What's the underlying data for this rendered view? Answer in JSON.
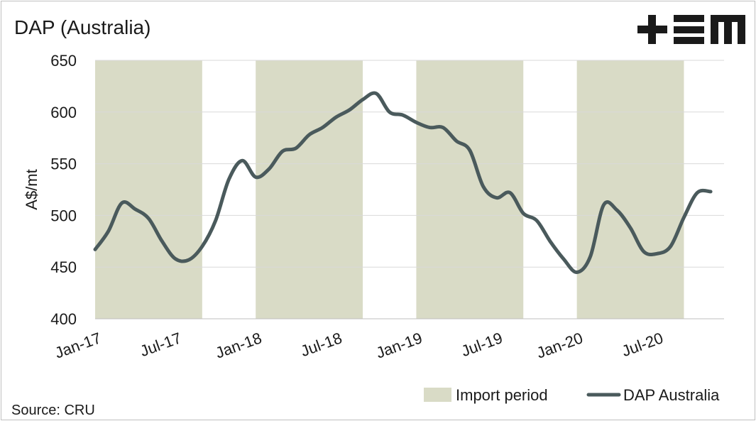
{
  "chart_data": {
    "type": "line",
    "title": "DAP (Australia)",
    "ylabel": "A$/mt",
    "xlabel": "",
    "ylim": [
      400,
      650
    ],
    "yticks": [
      400,
      450,
      500,
      550,
      600,
      650
    ],
    "x_ticks": [
      "Jan-17",
      "Jul-17",
      "Jan-18",
      "Jul-18",
      "Jan-19",
      "Jul-19",
      "Jan-20",
      "Jul-20"
    ],
    "grid": "horizontal",
    "legend_position": "bottom-right",
    "x_start": "2017-01",
    "series": [
      {
        "name": "DAP Australia",
        "color": "#4a5a5c",
        "x": [
          "2017-01",
          "2017-02",
          "2017-03",
          "2017-04",
          "2017-05",
          "2017-06",
          "2017-07",
          "2017-08",
          "2017-09",
          "2017-10",
          "2017-11",
          "2017-12",
          "2018-01",
          "2018-02",
          "2018-03",
          "2018-04",
          "2018-05",
          "2018-06",
          "2018-07",
          "2018-08",
          "2018-09",
          "2018-10",
          "2018-11",
          "2018-12",
          "2019-01",
          "2019-02",
          "2019-03",
          "2019-04",
          "2019-05",
          "2019-06",
          "2019-07",
          "2019-08",
          "2019-09",
          "2019-10",
          "2019-11",
          "2019-12",
          "2020-01",
          "2020-02",
          "2020-03",
          "2020-04",
          "2020-05",
          "2020-06",
          "2020-07",
          "2020-08",
          "2020-09",
          "2020-10",
          "2020-11"
        ],
        "values": [
          467,
          485,
          512,
          506,
          497,
          475,
          458,
          457,
          470,
          495,
          535,
          553,
          537,
          545,
          562,
          565,
          578,
          585,
          595,
          602,
          612,
          618,
          600,
          597,
          590,
          585,
          585,
          572,
          563,
          528,
          517,
          522,
          502,
          495,
          475,
          458,
          445,
          460,
          510,
          505,
          488,
          465,
          463,
          470,
          498,
          522,
          523
        ]
      }
    ],
    "bands": {
      "name": "Import period",
      "color": "#d9dbc6",
      "ranges": [
        [
          "2017-01",
          "2017-09"
        ],
        [
          "2018-01",
          "2018-09"
        ],
        [
          "2019-01",
          "2019-09"
        ],
        [
          "2020-01",
          "2020-09"
        ]
      ]
    }
  },
  "source": "Source: CRU",
  "logo": {
    "text": "+EM",
    "color": "#1a1a1a"
  }
}
